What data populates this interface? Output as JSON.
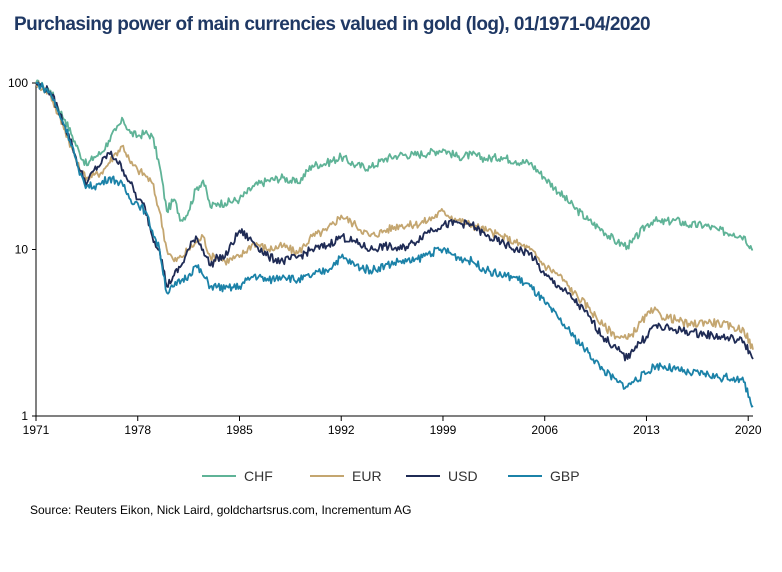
{
  "title": "Purchasing power of main currencies valued in gold (log), 01/1971-04/2020",
  "source": "Source: Reuters Eikon, Nick Laird, goldchartsrus.com, Incrementum AG",
  "chart_data": {
    "type": "line",
    "title": "Purchasing power of main currencies valued in gold (log), 01/1971-04/2020",
    "xlabel": "",
    "ylabel": "",
    "yscale": "log",
    "xlim": [
      1971,
      2020.33
    ],
    "ylim": [
      1,
      100
    ],
    "x_ticks": [
      1971,
      1978,
      1985,
      1992,
      1999,
      2006,
      2013,
      2020
    ],
    "y_ticks": [
      1,
      10,
      100
    ],
    "grid": false,
    "legend_position": "bottom",
    "x": [
      1971,
      1971.5,
      1972,
      1972.5,
      1973,
      1973.5,
      1974,
      1974.5,
      1975,
      1975.5,
      1976,
      1976.5,
      1977,
      1977.5,
      1978,
      1978.5,
      1979,
      1979.5,
      1980,
      1980.5,
      1981,
      1981.5,
      1982,
      1982.5,
      1983,
      1983.5,
      1984,
      1985,
      1986,
      1987,
      1988,
      1989,
      1990,
      1991,
      1992,
      1993,
      1994,
      1995,
      1996,
      1997,
      1998,
      1999,
      2000,
      2001,
      2002,
      2003,
      2004,
      2005,
      2006,
      2007,
      2008,
      2009,
      2010,
      2011,
      2011.7,
      2012,
      2013,
      2013.5,
      2014,
      2015,
      2016,
      2017,
      2018,
      2019,
      2019.7,
      2020.33
    ],
    "series": [
      {
        "name": "CHF",
        "color": "#5fb397",
        "values": [
          100,
          95,
          90,
          72,
          60,
          48,
          38,
          32,
          36,
          38,
          45,
          52,
          60,
          50,
          48,
          50,
          48,
          32,
          17,
          20,
          15,
          17,
          23,
          26,
          18,
          19,
          19,
          20,
          24,
          26,
          27,
          25,
          32,
          33,
          36,
          32,
          31,
          35,
          37,
          37,
          38,
          40,
          36,
          37,
          35,
          36,
          34,
          33,
          27,
          22,
          18,
          15,
          13,
          11,
          10.5,
          11,
          14,
          15,
          14.5,
          15,
          14,
          14,
          13,
          12.5,
          12,
          10
        ]
      },
      {
        "name": "EUR",
        "color": "#c4a670",
        "values": [
          100,
          93,
          85,
          65,
          52,
          40,
          30,
          27,
          28,
          29,
          33,
          38,
          42,
          33,
          30,
          28,
          25,
          17,
          10,
          8.5,
          9,
          10,
          11,
          12,
          9,
          9,
          8.5,
          9,
          11,
          10,
          10.5,
          9.5,
          12,
          13,
          16,
          14,
          12,
          13,
          14,
          14,
          15,
          17,
          15,
          14,
          13,
          12,
          11,
          10,
          8,
          7,
          5.5,
          4.5,
          3.5,
          3,
          2.9,
          3.1,
          4,
          4.3,
          4,
          3.8,
          3.5,
          3.7,
          3.6,
          3.4,
          3.3,
          2.5
        ]
      },
      {
        "name": "USD",
        "color": "#1f2b55",
        "values": [
          100,
          94,
          88,
          70,
          55,
          42,
          30,
          25,
          30,
          33,
          38,
          35,
          30,
          25,
          20,
          18,
          12,
          10,
          6,
          7,
          8,
          10,
          12,
          10,
          8,
          9,
          9,
          13,
          11,
          9,
          8.5,
          9,
          10,
          10.5,
          12,
          11,
          10,
          10.5,
          10,
          11,
          13,
          14,
          14.5,
          14,
          12,
          11,
          10,
          9.5,
          7,
          6,
          5,
          4,
          3,
          2.5,
          2.2,
          2.5,
          3,
          3.5,
          3.4,
          3.3,
          3.2,
          3.1,
          3,
          2.9,
          2.8,
          2.2
        ]
      },
      {
        "name": "GBP",
        "color": "#1b82a8",
        "values": [
          100,
          94,
          87,
          68,
          55,
          42,
          28,
          24,
          24,
          25,
          27,
          26,
          24,
          20,
          19,
          17,
          13,
          10,
          5.5,
          6,
          6.5,
          7,
          8,
          7,
          6,
          6,
          5.8,
          6,
          7,
          6.5,
          7,
          6.5,
          7,
          7.5,
          9,
          8,
          7.5,
          8,
          8.5,
          8.5,
          9.5,
          10,
          9,
          8.5,
          7.5,
          7,
          6.8,
          6,
          4.8,
          3.8,
          3,
          2.4,
          1.9,
          1.6,
          1.5,
          1.6,
          1.8,
          2,
          2,
          1.9,
          1.8,
          1.8,
          1.7,
          1.7,
          1.6,
          1.15
        ]
      }
    ]
  }
}
